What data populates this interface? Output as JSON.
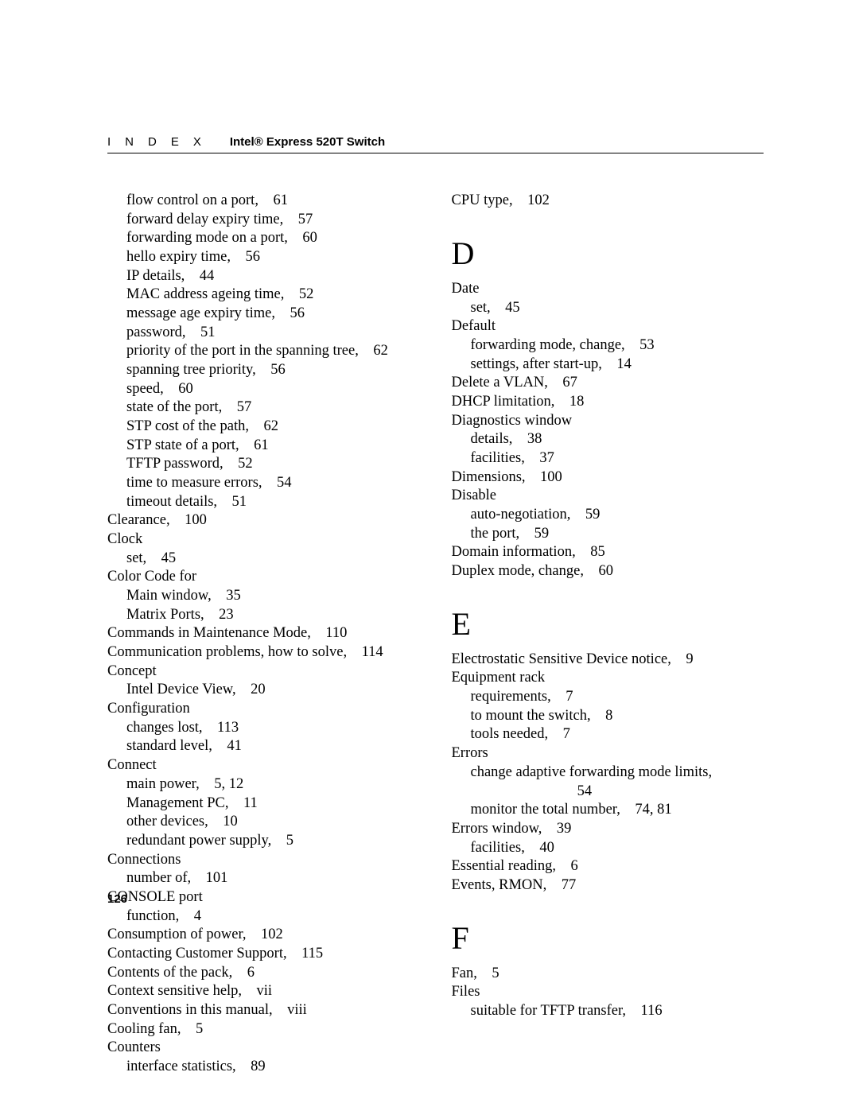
{
  "header": {
    "section": "INDEX",
    "title": "Intel® Express 520T Switch"
  },
  "page_number": "126",
  "left_column": [
    {
      "text": "flow control on a port,    61",
      "indent": 1
    },
    {
      "text": "forward delay expiry time,    57",
      "indent": 1
    },
    {
      "text": "forwarding mode on a port,    60",
      "indent": 1
    },
    {
      "text": "hello expiry time,    56",
      "indent": 1
    },
    {
      "text": "IP details,    44",
      "indent": 1
    },
    {
      "text": "MAC address ageing time,    52",
      "indent": 1
    },
    {
      "text": "message age expiry time,    56",
      "indent": 1
    },
    {
      "text": "password,    51",
      "indent": 1
    },
    {
      "text": "priority of the port in the spanning tree,    62",
      "indent": 1
    },
    {
      "text": "spanning tree priority,    56",
      "indent": 1
    },
    {
      "text": "speed,    60",
      "indent": 1
    },
    {
      "text": "state of the port,    57",
      "indent": 1
    },
    {
      "text": "STP cost of the path,    62",
      "indent": 1
    },
    {
      "text": "STP state of a port,    61",
      "indent": 1
    },
    {
      "text": "TFTP password,    52",
      "indent": 1
    },
    {
      "text": "time to measure errors,    54",
      "indent": 1
    },
    {
      "text": "timeout details,    51",
      "indent": 1
    },
    {
      "text": "Clearance,    100",
      "indent": 0
    },
    {
      "text": "Clock",
      "indent": 0
    },
    {
      "text": "set,    45",
      "indent": 1
    },
    {
      "text": "Color Code for",
      "indent": 0
    },
    {
      "text": "Main window,    35",
      "indent": 1
    },
    {
      "text": "Matrix Ports,    23",
      "indent": 1
    },
    {
      "text": "Commands in Maintenance Mode,    110",
      "indent": 0
    },
    {
      "text": "Communication problems, how to solve,    114",
      "indent": 0
    },
    {
      "text": "Concept",
      "indent": 0
    },
    {
      "text": "Intel Device View,    20",
      "indent": 1
    },
    {
      "text": "Configuration",
      "indent": 0
    },
    {
      "text": "changes lost,    113",
      "indent": 1
    },
    {
      "text": "standard level,    41",
      "indent": 1
    },
    {
      "text": "Connect",
      "indent": 0
    },
    {
      "text": "main power,    5, 12",
      "indent": 1
    },
    {
      "text": "Management PC,    11",
      "indent": 1
    },
    {
      "text": "other devices,    10",
      "indent": 1
    },
    {
      "text": "redundant power supply,    5",
      "indent": 1
    },
    {
      "text": "Connections",
      "indent": 0
    },
    {
      "text": "number of,    101",
      "indent": 1
    },
    {
      "text": "CONSOLE port",
      "indent": 0
    },
    {
      "text": "function,    4",
      "indent": 1
    },
    {
      "text": "Consumption of power,    102",
      "indent": 0
    },
    {
      "text": "Contacting Customer Support,    115",
      "indent": 0
    },
    {
      "text": "Contents of the pack,    6",
      "indent": 0
    },
    {
      "text": "Context sensitive help,    vii",
      "indent": 0
    },
    {
      "text": "Conventions in this manual,    viii",
      "indent": 0
    },
    {
      "text": "Cooling fan,    5",
      "indent": 0
    },
    {
      "text": "Counters",
      "indent": 0
    },
    {
      "text": "interface statistics,    89",
      "indent": 1
    }
  ],
  "right_column": [
    {
      "text": "CPU type,    102",
      "indent": 0
    },
    {
      "letter": "D"
    },
    {
      "text": "Date",
      "indent": 0
    },
    {
      "text": "set,    45",
      "indent": 1
    },
    {
      "text": "Default",
      "indent": 0
    },
    {
      "text": "forwarding mode, change,    53",
      "indent": 1
    },
    {
      "text": "settings, after start-up,    14",
      "indent": 1
    },
    {
      "text": "Delete a VLAN,    67",
      "indent": 0
    },
    {
      "text": "DHCP limitation,    18",
      "indent": 0
    },
    {
      "text": "Diagnostics window",
      "indent": 0
    },
    {
      "text": "details,    38",
      "indent": 1
    },
    {
      "text": "facilities,    37",
      "indent": 1
    },
    {
      "text": "Dimensions,    100",
      "indent": 0
    },
    {
      "text": "Disable",
      "indent": 0
    },
    {
      "text": "auto-negotiation,    59",
      "indent": 1
    },
    {
      "text": "the port,    59",
      "indent": 1
    },
    {
      "text": "Domain information,    85",
      "indent": 0
    },
    {
      "text": "Duplex mode, change,    60",
      "indent": 0
    },
    {
      "letter": "E"
    },
    {
      "text": "Electrostatic Sensitive Device notice,    9",
      "indent": 0
    },
    {
      "text": "Equipment rack",
      "indent": 0
    },
    {
      "text": "requirements,    7",
      "indent": 1
    },
    {
      "text": "to mount the switch,    8",
      "indent": 1
    },
    {
      "text": "tools needed,    7",
      "indent": 1
    },
    {
      "text": "Errors",
      "indent": 0
    },
    {
      "text": "change adaptive forwarding mode limits,",
      "indent": 1
    },
    {
      "text": "                             54",
      "indent": 1
    },
    {
      "text": "monitor the total number,    74, 81",
      "indent": 1
    },
    {
      "text": "Errors window,    39",
      "indent": 0
    },
    {
      "text": "facilities,    40",
      "indent": 1
    },
    {
      "text": "Essential reading,    6",
      "indent": 0
    },
    {
      "text": "Events, RMON,    77",
      "indent": 0
    },
    {
      "letter": "F"
    },
    {
      "text": "Fan,    5",
      "indent": 0
    },
    {
      "text": "Files",
      "indent": 0
    },
    {
      "text": "suitable for TFTP transfer,    116",
      "indent": 1
    }
  ]
}
